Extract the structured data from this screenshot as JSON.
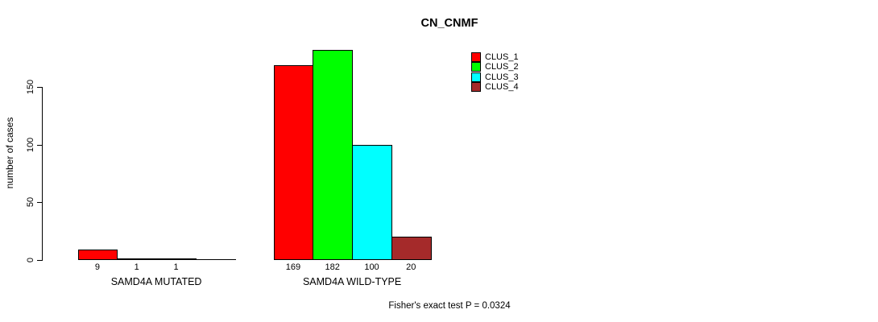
{
  "chart_data": {
    "type": "bar",
    "title": "CN_CNMF",
    "xlabel": "",
    "ylabel": "number of cases",
    "categories": [
      "SAMD4A MUTATED",
      "SAMD4A WILD-TYPE"
    ],
    "series": [
      {
        "name": "CLUS_1",
        "color": "#FF0000",
        "values": [
          9,
          169
        ]
      },
      {
        "name": "CLUS_2",
        "color": "#00FF00",
        "values": [
          1,
          182
        ]
      },
      {
        "name": "CLUS_3",
        "color": "#00FFFF",
        "values": [
          1,
          100
        ]
      },
      {
        "name": "CLUS_4",
        "color": "#A52A2A",
        "values": [
          0,
          20
        ]
      }
    ],
    "bar_value_labels": [
      [
        "9",
        "1",
        "1",
        ""
      ],
      [
        "169",
        "182",
        "100",
        "20"
      ]
    ],
    "yticks": [
      0,
      50,
      100,
      150
    ],
    "ylim": [
      0,
      190
    ],
    "grid": false,
    "legend_position": "top-right",
    "annotation": "Fisher's exact test P = 0.0324"
  }
}
